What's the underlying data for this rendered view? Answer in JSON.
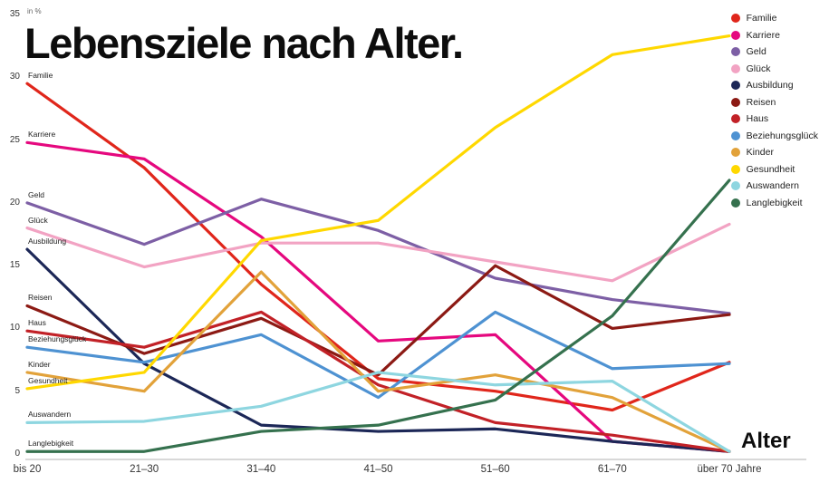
{
  "chart": {
    "title": "Lebensziele nach Alter.",
    "unit_label": "in %",
    "x_axis_title": "Alter"
  },
  "chart_data": {
    "type": "line",
    "title": "Lebensziele nach Alter.",
    "unit": "in %",
    "x_axis_title": "Alter",
    "ylim": [
      0,
      35
    ],
    "y_ticks": [
      0,
      5,
      10,
      15,
      20,
      25,
      30,
      35
    ],
    "grid": false,
    "legend_position": "top-right",
    "categories": [
      "bis 20",
      "21–30",
      "31–40",
      "41–50",
      "51–60",
      "61–70",
      "über 70 Jahre"
    ],
    "series": [
      {
        "name": "Familie",
        "color": "#e0261b",
        "values": [
          29.5,
          22.8,
          13.5,
          6.0,
          5.0,
          3.5,
          7.3
        ]
      },
      {
        "name": "Karriere",
        "color": "#e5087e",
        "values": [
          24.8,
          23.5,
          17.3,
          9.0,
          9.5,
          1.0,
          0.2
        ]
      },
      {
        "name": "Geld",
        "color": "#7d5fa5",
        "values": [
          20.0,
          16.7,
          20.3,
          17.8,
          14.0,
          12.3,
          11.2
        ]
      },
      {
        "name": "Glück",
        "color": "#f2a3c3",
        "values": [
          18.0,
          14.9,
          16.8,
          16.8,
          15.3,
          13.8,
          18.3
        ]
      },
      {
        "name": "Ausbildung",
        "color": "#1c2757",
        "values": [
          16.3,
          7.2,
          2.3,
          1.8,
          2.0,
          1.0,
          0.2
        ]
      },
      {
        "name": "Reisen",
        "color": "#8c1a14",
        "values": [
          11.8,
          8.0,
          10.8,
          6.3,
          15.0,
          10.0,
          11.1
        ]
      },
      {
        "name": "Haus",
        "color": "#c22127",
        "values": [
          9.8,
          8.5,
          11.3,
          5.5,
          2.5,
          1.5,
          0.2
        ]
      },
      {
        "name": "Beziehungsglück",
        "color": "#4e92d2",
        "values": [
          8.5,
          7.3,
          9.5,
          4.5,
          11.3,
          6.8,
          7.2
        ]
      },
      {
        "name": "Kinder",
        "color": "#e2a23a",
        "values": [
          6.5,
          5.0,
          14.5,
          5.0,
          6.3,
          4.5,
          0.2
        ]
      },
      {
        "name": "Gesundheit",
        "color": "#ffd800",
        "values": [
          5.2,
          6.5,
          17.0,
          18.6,
          26.0,
          31.8,
          33.3
        ]
      },
      {
        "name": "Auswandern",
        "color": "#8ed6e0",
        "values": [
          2.5,
          2.6,
          3.8,
          6.5,
          5.5,
          5.8,
          0.2
        ]
      },
      {
        "name": "Langlebigkeit",
        "color": "#35714e",
        "values": [
          0.2,
          0.2,
          1.8,
          2.3,
          4.3,
          11.0,
          21.8
        ]
      }
    ]
  }
}
